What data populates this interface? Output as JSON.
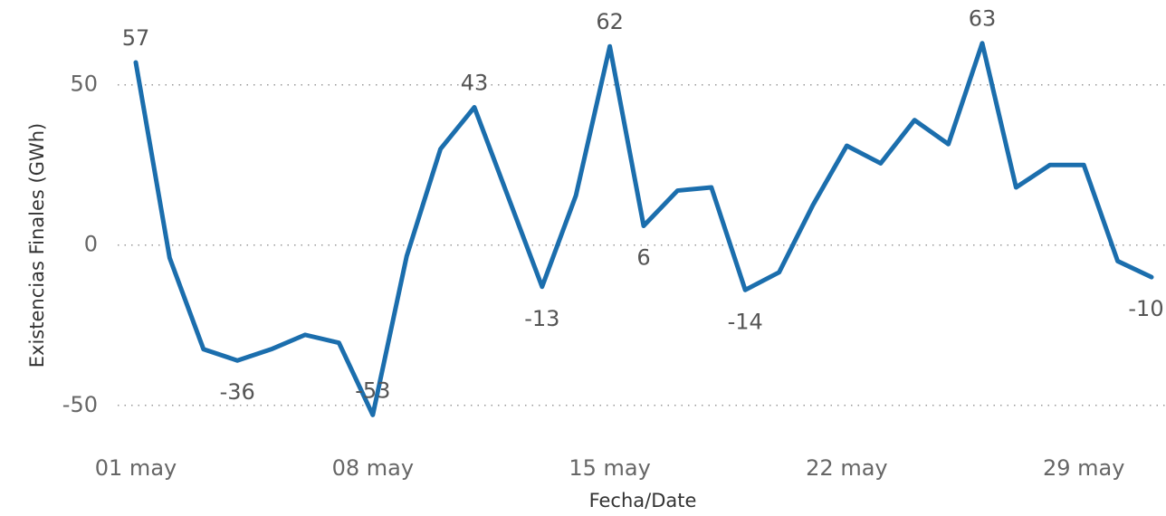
{
  "chart_data": {
    "type": "line",
    "x_label": "Fecha/Date",
    "y_label": "Existencias Finales (GWh)",
    "categories": [
      "01 may",
      null,
      null,
      null,
      null,
      null,
      null,
      "08 may",
      null,
      null,
      null,
      null,
      null,
      null,
      "15 may",
      null,
      null,
      null,
      null,
      null,
      null,
      "22 may",
      null,
      null,
      null,
      null,
      null,
      null,
      "29 may",
      null,
      null
    ],
    "series": [
      {
        "name": "Existencias Finales",
        "color": "#1b6ead",
        "values": [
          57,
          -4,
          -32.5,
          -36,
          -32.5,
          -28,
          -30.5,
          -53,
          -3.5,
          30,
          43,
          15,
          -13,
          15.5,
          62,
          6,
          17,
          18,
          -14,
          -8.5,
          12.5,
          31,
          25.5,
          39,
          31.5,
          63,
          18,
          25,
          25,
          -5,
          -10
        ],
        "value_labels": [
          "57",
          null,
          null,
          "-36",
          null,
          null,
          null,
          "-53",
          null,
          null,
          "43",
          null,
          "-13",
          null,
          "62",
          "6",
          null,
          null,
          "-14",
          null,
          null,
          null,
          null,
          null,
          null,
          "63",
          null,
          null,
          null,
          null,
          "-10"
        ]
      }
    ],
    "ylim": [
      -56,
      68
    ],
    "yticks": [
      -50,
      0,
      50
    ],
    "grid": true
  }
}
